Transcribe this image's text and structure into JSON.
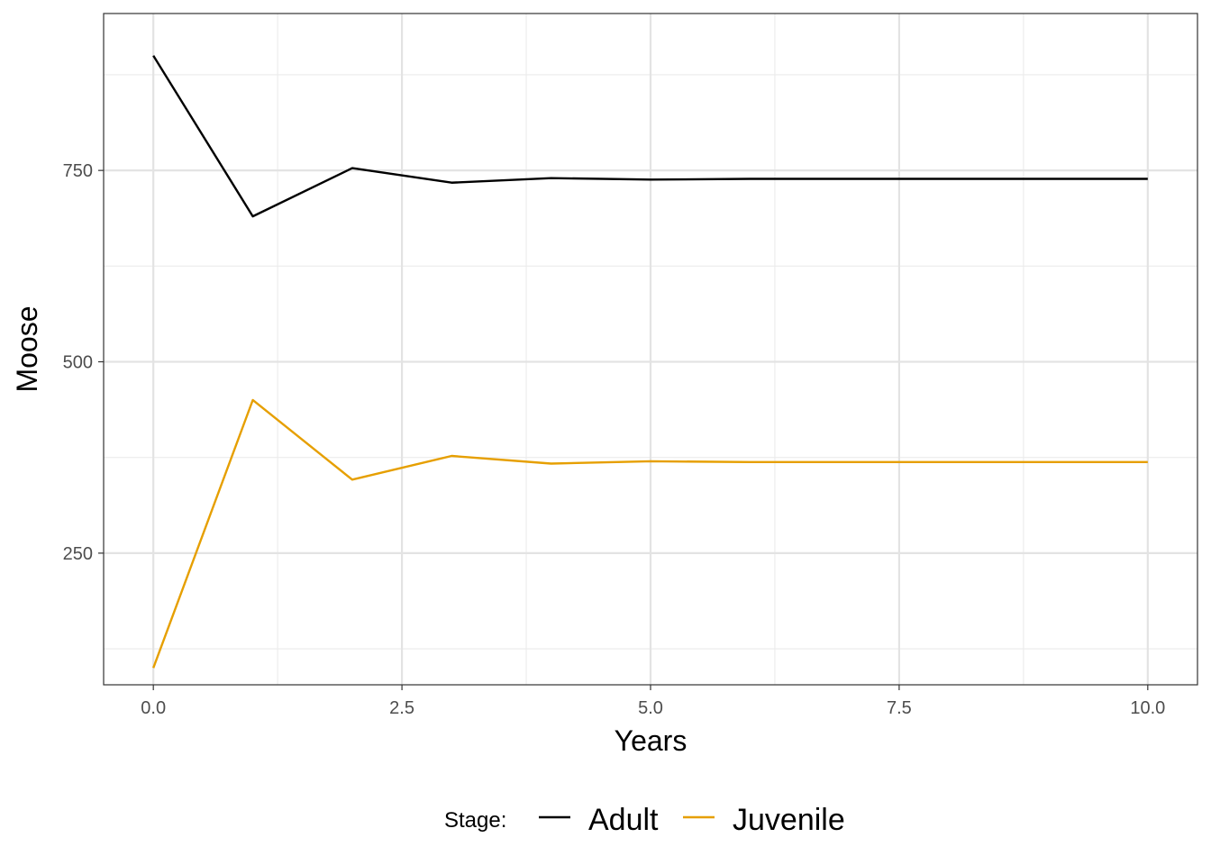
{
  "chart_data": {
    "type": "line",
    "xlabel": "Years",
    "ylabel": "Moose",
    "xlim": [
      -0.5,
      10.5
    ],
    "ylim": [
      78,
      955
    ],
    "x_ticks": [
      0.0,
      2.5,
      5.0,
      7.5,
      10.0
    ],
    "x_tick_labels": [
      "0.0",
      "2.5",
      "5.0",
      "7.5",
      "10.0"
    ],
    "y_ticks": [
      250,
      500,
      750
    ],
    "y_tick_labels": [
      "250",
      "500",
      "750"
    ],
    "x_minor_ticks": [
      1.25,
      3.75,
      6.25,
      8.75
    ],
    "y_minor_ticks": [
      125,
      375,
      625,
      875
    ],
    "grid": true,
    "legend": {
      "title": "Stage:",
      "position": "bottom"
    },
    "x": [
      0,
      1,
      2,
      3,
      4,
      5,
      6,
      7,
      8,
      9,
      10
    ],
    "series": [
      {
        "name": "Adult",
        "color": "#000000",
        "values": [
          900,
          690,
          753,
          734,
          740,
          738,
          739,
          739,
          739,
          739,
          739
        ]
      },
      {
        "name": "Juvenile",
        "color": "#E69F00",
        "values": [
          100,
          450,
          346,
          377,
          367,
          370,
          369,
          369,
          369,
          369,
          369
        ]
      }
    ]
  }
}
